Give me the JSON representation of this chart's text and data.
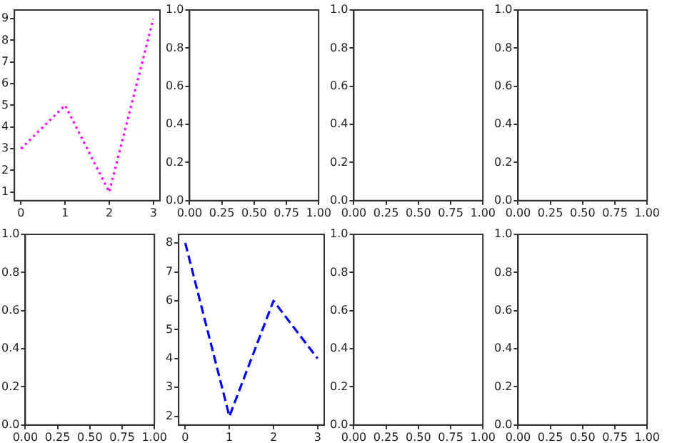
{
  "chart_data": [
    {
      "type": "line",
      "x": [
        0,
        1,
        2,
        3
      ],
      "series": [
        {
          "color": "#ff00ff",
          "values": [
            3,
            5,
            1,
            9
          ],
          "line_style": "dotted"
        }
      ],
      "marker": "none",
      "xlim": [
        -0.15,
        3.15
      ],
      "xticks": [
        0,
        1,
        2,
        3
      ],
      "ylim": [
        0.6,
        9.4
      ],
      "yticks": [
        1,
        2,
        3,
        4,
        5,
        6,
        7,
        8,
        9
      ],
      "grid": false,
      "legend": false
    },
    {
      "type": "line",
      "xlim": [
        0,
        1
      ],
      "xticks": [
        {
          "value": 0,
          "label": "0.00"
        },
        {
          "value": 0.25,
          "label": "0.25"
        },
        {
          "value": 0.5,
          "label": "0.50"
        },
        {
          "value": 0.75,
          "label": "0.75"
        },
        {
          "value": 1,
          "label": "1.00"
        }
      ],
      "ylim": [
        0,
        1
      ],
      "yticks": [
        {
          "value": 0,
          "label": "0.0"
        },
        {
          "value": 0.2,
          "label": "0.2"
        },
        {
          "value": 0.4,
          "label": "0.4"
        },
        {
          "value": 0.6,
          "label": "0.6"
        },
        {
          "value": 0.8,
          "label": "0.8"
        },
        {
          "value": 1,
          "label": "1.0"
        }
      ],
      "grid": false,
      "legend": false
    },
    {
      "type": "line",
      "xlim": [
        0,
        1
      ],
      "xticks": [
        {
          "value": 0,
          "label": "0.00"
        },
        {
          "value": 0.25,
          "label": "0.25"
        },
        {
          "value": 0.5,
          "label": "0.50"
        },
        {
          "value": 0.75,
          "label": "0.75"
        },
        {
          "value": 1,
          "label": "1.00"
        }
      ],
      "ylim": [
        0,
        1
      ],
      "yticks": [
        {
          "value": 0,
          "label": "0.0"
        },
        {
          "value": 0.2,
          "label": "0.2"
        },
        {
          "value": 0.4,
          "label": "0.4"
        },
        {
          "value": 0.6,
          "label": "0.6"
        },
        {
          "value": 0.8,
          "label": "0.8"
        },
        {
          "value": 1,
          "label": "1.0"
        }
      ],
      "grid": false,
      "legend": false
    },
    {
      "type": "line",
      "xlim": [
        0,
        1
      ],
      "xticks": [
        {
          "value": 0,
          "label": "0.00"
        },
        {
          "value": 0.25,
          "label": "0.25"
        },
        {
          "value": 0.5,
          "label": "0.50"
        },
        {
          "value": 0.75,
          "label": "0.75"
        },
        {
          "value": 1,
          "label": "1.00"
        }
      ],
      "ylim": [
        0,
        1
      ],
      "yticks": [
        {
          "value": 0,
          "label": "0.0"
        },
        {
          "value": 0.2,
          "label": "0.2"
        },
        {
          "value": 0.4,
          "label": "0.4"
        },
        {
          "value": 0.6,
          "label": "0.6"
        },
        {
          "value": 0.8,
          "label": "0.8"
        },
        {
          "value": 1,
          "label": "1.0"
        }
      ],
      "grid": false,
      "legend": false
    },
    {
      "type": "line",
      "xlim": [
        0,
        1
      ],
      "xticks": [
        {
          "value": 0,
          "label": "0.00"
        },
        {
          "value": 0.25,
          "label": "0.25"
        },
        {
          "value": 0.5,
          "label": "0.50"
        },
        {
          "value": 0.75,
          "label": "0.75"
        },
        {
          "value": 1,
          "label": "1.00"
        }
      ],
      "ylim": [
        0,
        1
      ],
      "yticks": [
        {
          "value": 0,
          "label": "0.0"
        },
        {
          "value": 0.2,
          "label": "0.2"
        },
        {
          "value": 0.4,
          "label": "0.4"
        },
        {
          "value": 0.6,
          "label": "0.6"
        },
        {
          "value": 0.8,
          "label": "0.8"
        },
        {
          "value": 1,
          "label": "1.0"
        }
      ],
      "grid": false,
      "legend": false
    },
    {
      "type": "line",
      "x": [
        0,
        1,
        2,
        3
      ],
      "series": [
        {
          "color": "#0000ff",
          "values": [
            8,
            2,
            6,
            4
          ],
          "line_style": "dashed"
        }
      ],
      "marker": "none",
      "xlim": [
        -0.15,
        3.15
      ],
      "xticks": [
        0,
        1,
        2,
        3
      ],
      "ylim": [
        1.7,
        8.3
      ],
      "yticks": [
        2,
        3,
        4,
        5,
        6,
        7,
        8
      ],
      "grid": false,
      "legend": false
    },
    {
      "type": "line",
      "xlim": [
        0,
        1
      ],
      "xticks": [
        {
          "value": 0,
          "label": "0.00"
        },
        {
          "value": 0.25,
          "label": "0.25"
        },
        {
          "value": 0.5,
          "label": "0.50"
        },
        {
          "value": 0.75,
          "label": "0.75"
        },
        {
          "value": 1,
          "label": "1.00"
        }
      ],
      "ylim": [
        0,
        1
      ],
      "yticks": [
        {
          "value": 0,
          "label": "0.0"
        },
        {
          "value": 0.2,
          "label": "0.2"
        },
        {
          "value": 0.4,
          "label": "0.4"
        },
        {
          "value": 0.6,
          "label": "0.6"
        },
        {
          "value": 0.8,
          "label": "0.8"
        },
        {
          "value": 1,
          "label": "1.0"
        }
      ],
      "grid": false,
      "legend": false
    },
    {
      "type": "line",
      "xlim": [
        0,
        1
      ],
      "xticks": [
        {
          "value": 0,
          "label": "0.00"
        },
        {
          "value": 0.25,
          "label": "0.25"
        },
        {
          "value": 0.5,
          "label": "0.50"
        },
        {
          "value": 0.75,
          "label": "0.75"
        },
        {
          "value": 1,
          "label": "1.00"
        }
      ],
      "ylim": [
        0,
        1
      ],
      "yticks": [
        {
          "value": 0,
          "label": "0.0"
        },
        {
          "value": 0.2,
          "label": "0.2"
        },
        {
          "value": 0.4,
          "label": "0.4"
        },
        {
          "value": 0.6,
          "label": "0.6"
        },
        {
          "value": 0.8,
          "label": "0.8"
        },
        {
          "value": 1,
          "label": "1.0"
        }
      ],
      "grid": false,
      "legend": false
    }
  ]
}
